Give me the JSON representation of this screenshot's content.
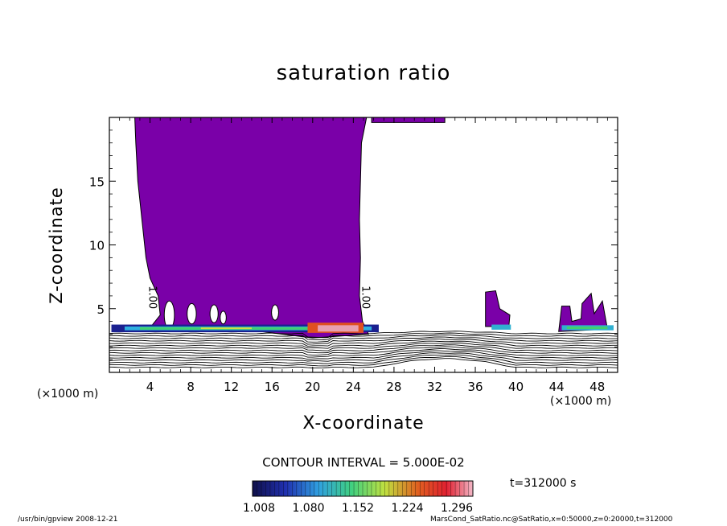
{
  "chart_data": {
    "type": "heatmap",
    "title": "saturation ratio",
    "xlabel": "X-coordinate",
    "ylabel": "Z-coordinate",
    "x_unit_left": "(×1000 m)",
    "x_unit_right": "(×1000 m)",
    "xlim": [
      0,
      50
    ],
    "ylim": [
      0,
      20
    ],
    "x_ticks": [
      4,
      8,
      12,
      16,
      20,
      24,
      28,
      32,
      36,
      40,
      44,
      48
    ],
    "y_ticks": [
      5,
      10,
      15
    ],
    "contour_labels": [
      {
        "text": "1.00",
        "x": 3.9,
        "z": 6.8
      },
      {
        "text": "1.00",
        "x": 24.9,
        "z": 6.8
      }
    ],
    "contour_interval": "CONTOUR INTERVAL = 5.000E-02",
    "time": "t=312000 s",
    "colorbar": {
      "ticks": [
        "1.008",
        "1.080",
        "1.152",
        "1.224",
        "1.296"
      ],
      "colors": [
        "#1a0a60",
        "#2040c0",
        "#30c0e0",
        "#40e060",
        "#e0e040",
        "#e04020",
        "#f0b0c0"
      ]
    },
    "fill_color": "#7a00a8",
    "footer_left": "/usr/bin/gpview   2008-12-21",
    "footer_right": "MarsCond_SatRatio.nc@SatRatio,x=0:50000,z=0:20000,t=312000"
  }
}
